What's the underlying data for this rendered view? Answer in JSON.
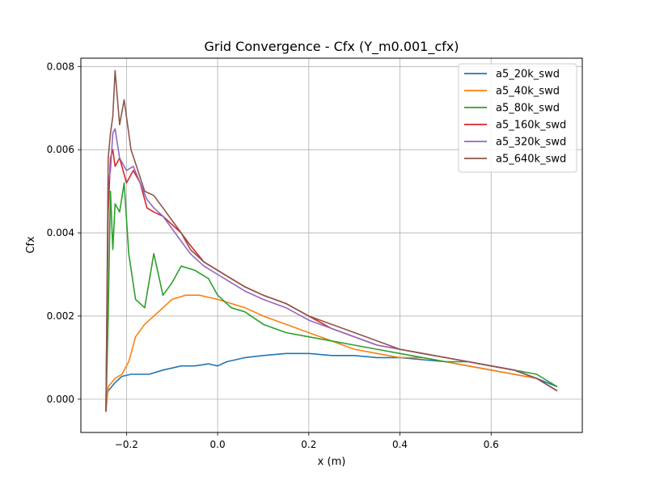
{
  "chart_data": {
    "type": "line",
    "title": "Grid Convergence - Cfx (Y_m0.001_cfx)",
    "xlabel": "x (m)",
    "ylabel": "Cfx",
    "xlim": [
      -0.3,
      0.8
    ],
    "ylim": [
      -0.0008,
      0.0082
    ],
    "xticks": [
      -0.2,
      0.0,
      0.2,
      0.4,
      0.6
    ],
    "xtick_labels": [
      "−0.2",
      "0.0",
      "0.2",
      "0.4",
      "0.6"
    ],
    "yticks": [
      0.0,
      0.002,
      0.004,
      0.006,
      0.008
    ],
    "ytick_labels": [
      "0.000",
      "0.002",
      "0.004",
      "0.006",
      "0.008"
    ],
    "grid": true,
    "legend_position": "top-right",
    "series": [
      {
        "name": "a5_20k_swd",
        "color": "#1f77b4",
        "x": [
          -0.245,
          -0.24,
          -0.225,
          -0.21,
          -0.19,
          -0.17,
          -0.15,
          -0.12,
          -0.1,
          -0.08,
          -0.05,
          -0.02,
          0.0,
          0.02,
          0.04,
          0.06,
          0.1,
          0.15,
          0.2,
          0.25,
          0.3,
          0.35,
          0.4,
          0.45,
          0.5,
          0.55,
          0.6,
          0.65,
          0.7,
          0.745
        ],
        "y": [
          0.0,
          0.0002,
          0.0004,
          0.00055,
          0.0006,
          0.0006,
          0.0006,
          0.0007,
          0.00075,
          0.0008,
          0.0008,
          0.00085,
          0.0008,
          0.0009,
          0.00095,
          0.001,
          0.00105,
          0.0011,
          0.0011,
          0.00105,
          0.00105,
          0.001,
          0.001,
          0.00095,
          0.0009,
          0.0008,
          0.0007,
          0.0006,
          0.0005,
          0.0003
        ]
      },
      {
        "name": "a5_40k_swd",
        "color": "#ff7f0e",
        "x": [
          -0.245,
          -0.24,
          -0.225,
          -0.21,
          -0.195,
          -0.18,
          -0.16,
          -0.14,
          -0.12,
          -0.1,
          -0.07,
          -0.04,
          0.0,
          0.03,
          0.06,
          0.1,
          0.15,
          0.2,
          0.25,
          0.3,
          0.35,
          0.4,
          0.45,
          0.5,
          0.55,
          0.6,
          0.65,
          0.7,
          0.745
        ],
        "y": [
          -0.0003,
          0.0003,
          0.0005,
          0.0006,
          0.0009,
          0.0015,
          0.0018,
          0.002,
          0.0022,
          0.0024,
          0.0025,
          0.0025,
          0.0024,
          0.0023,
          0.0022,
          0.002,
          0.0018,
          0.0016,
          0.0014,
          0.0012,
          0.0011,
          0.001,
          0.001,
          0.0009,
          0.0008,
          0.0007,
          0.0006,
          0.0005,
          0.0002
        ]
      },
      {
        "name": "a5_80k_swd",
        "color": "#2ca02c",
        "x": [
          -0.245,
          -0.24,
          -0.235,
          -0.23,
          -0.225,
          -0.215,
          -0.205,
          -0.195,
          -0.18,
          -0.16,
          -0.14,
          -0.12,
          -0.1,
          -0.08,
          -0.05,
          -0.02,
          0.0,
          0.03,
          0.06,
          0.1,
          0.15,
          0.2,
          0.25,
          0.3,
          0.35,
          0.4,
          0.45,
          0.5,
          0.55,
          0.6,
          0.65,
          0.7,
          0.745
        ],
        "y": [
          -0.0003,
          0.002,
          0.005,
          0.0036,
          0.0047,
          0.0045,
          0.0052,
          0.0035,
          0.0024,
          0.0022,
          0.0035,
          0.0025,
          0.0028,
          0.0032,
          0.0031,
          0.0029,
          0.0025,
          0.0022,
          0.0021,
          0.0018,
          0.0016,
          0.0015,
          0.0014,
          0.0013,
          0.0012,
          0.0011,
          0.001,
          0.0009,
          0.0009,
          0.0008,
          0.0007,
          0.0006,
          0.0003
        ]
      },
      {
        "name": "a5_160k_swd",
        "color": "#d62728",
        "x": [
          -0.245,
          -0.24,
          -0.235,
          -0.23,
          -0.225,
          -0.215,
          -0.2,
          -0.185,
          -0.17,
          -0.155,
          -0.14,
          -0.12,
          -0.1,
          -0.08,
          -0.06,
          -0.03,
          0.0,
          0.03,
          0.06,
          0.1,
          0.15,
          0.2,
          0.25,
          0.3,
          0.35,
          0.4,
          0.45,
          0.5,
          0.55,
          0.6,
          0.65,
          0.7,
          0.745
        ],
        "y": [
          -0.0003,
          0.0045,
          0.0058,
          0.006,
          0.0056,
          0.0058,
          0.0052,
          0.0055,
          0.0052,
          0.0046,
          0.0045,
          0.0044,
          0.0042,
          0.004,
          0.0037,
          0.0033,
          0.0031,
          0.0029,
          0.0027,
          0.0025,
          0.0023,
          0.002,
          0.0017,
          0.0015,
          0.0013,
          0.0012,
          0.0011,
          0.001,
          0.0009,
          0.0008,
          0.0007,
          0.0005,
          0.0002
        ]
      },
      {
        "name": "a5_320k_swd",
        "color": "#9467bd",
        "x": [
          -0.245,
          -0.24,
          -0.235,
          -0.23,
          -0.225,
          -0.215,
          -0.2,
          -0.185,
          -0.17,
          -0.155,
          -0.14,
          -0.12,
          -0.1,
          -0.08,
          -0.06,
          -0.03,
          0.0,
          0.03,
          0.06,
          0.1,
          0.15,
          0.2,
          0.25,
          0.3,
          0.35,
          0.4,
          0.45,
          0.5,
          0.55,
          0.6,
          0.65,
          0.7,
          0.745
        ],
        "y": [
          -0.0003,
          0.0052,
          0.0055,
          0.0064,
          0.0065,
          0.0058,
          0.0055,
          0.0056,
          0.0052,
          0.0048,
          0.0046,
          0.0044,
          0.0041,
          0.0038,
          0.0035,
          0.0032,
          0.003,
          0.0028,
          0.0026,
          0.0024,
          0.0022,
          0.0019,
          0.0017,
          0.0015,
          0.0013,
          0.0012,
          0.0011,
          0.001,
          0.0009,
          0.0008,
          0.0007,
          0.0005,
          0.0002
        ]
      },
      {
        "name": "a5_640k_swd",
        "color": "#8c564b",
        "x": [
          -0.245,
          -0.24,
          -0.235,
          -0.23,
          -0.225,
          -0.215,
          -0.205,
          -0.19,
          -0.175,
          -0.16,
          -0.14,
          -0.12,
          -0.1,
          -0.08,
          -0.06,
          -0.03,
          0.0,
          0.03,
          0.06,
          0.1,
          0.15,
          0.2,
          0.25,
          0.3,
          0.35,
          0.4,
          0.45,
          0.5,
          0.55,
          0.6,
          0.65,
          0.7,
          0.745
        ],
        "y": [
          -0.0003,
          0.0058,
          0.0064,
          0.0068,
          0.0079,
          0.0066,
          0.0072,
          0.006,
          0.0055,
          0.005,
          0.0049,
          0.0046,
          0.0043,
          0.004,
          0.0036,
          0.0033,
          0.0031,
          0.0029,
          0.0027,
          0.0025,
          0.0023,
          0.002,
          0.0018,
          0.0016,
          0.0014,
          0.0012,
          0.0011,
          0.001,
          0.0009,
          0.0008,
          0.0007,
          0.0005,
          0.0002
        ]
      }
    ]
  }
}
